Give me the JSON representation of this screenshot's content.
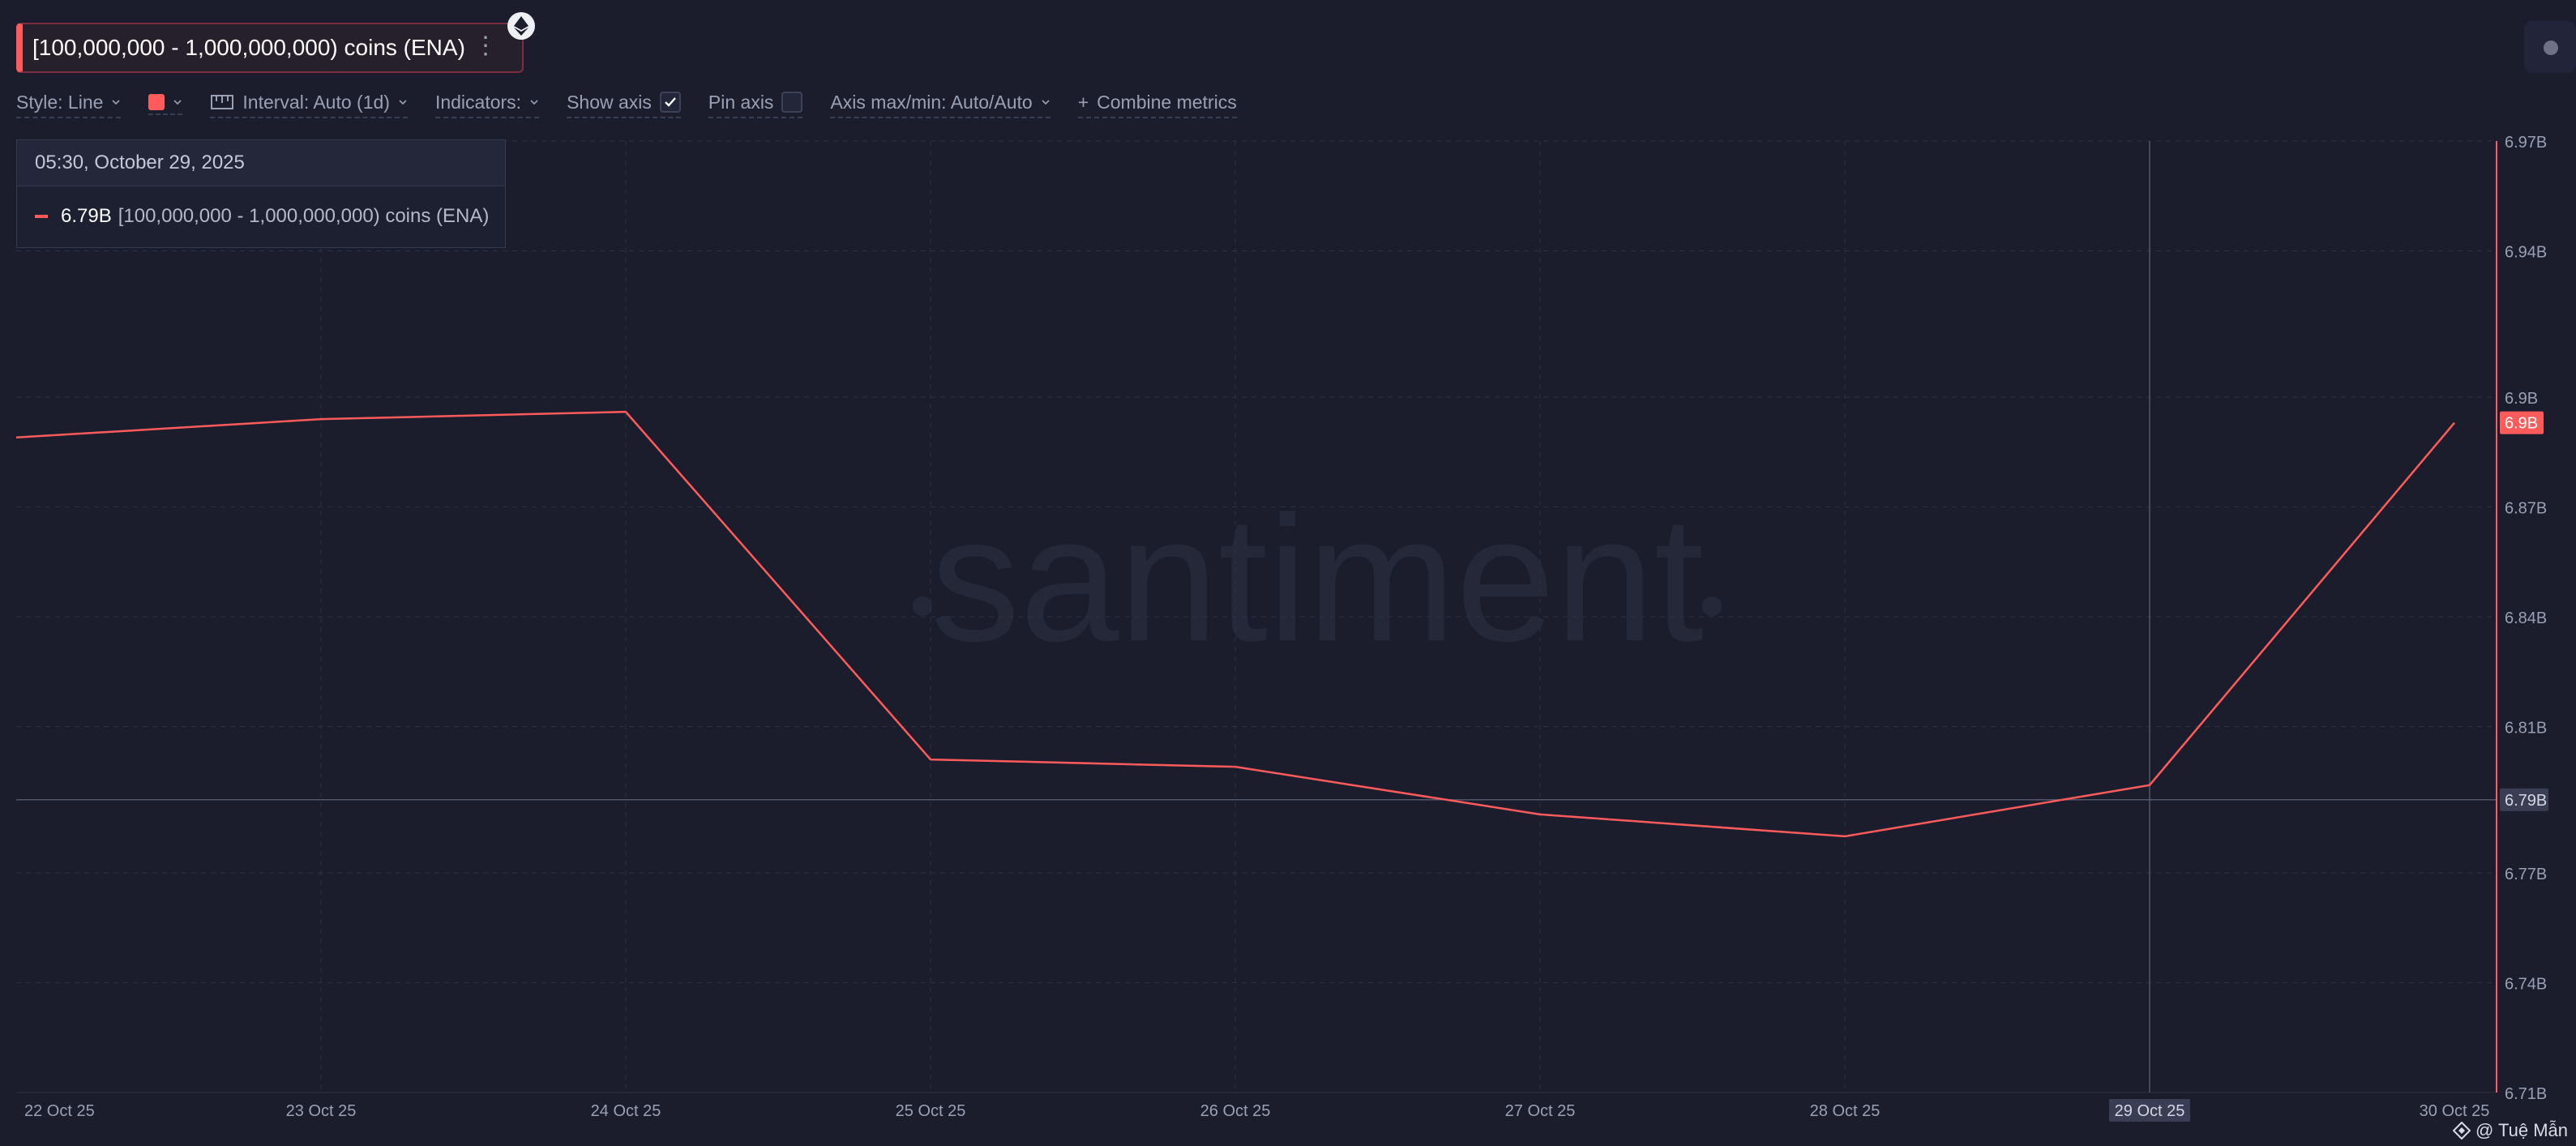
{
  "header": {
    "metric_title": "[100,000,000 - 1,000,000,000) coins (ENA)",
    "menu_glyph": "⋮",
    "asset_icon": "ethereum-icon"
  },
  "toolbar": {
    "style_label": "Style: Line",
    "color_swatch": "#ff5b5b",
    "interval_label": "Interval: Auto (1d)",
    "indicators_label": "Indicators:",
    "show_axis_label": "Show axis",
    "show_axis_checked": true,
    "pin_axis_label": "Pin axis",
    "pin_axis_checked": false,
    "axis_minmax_label": "Axis max/min: Auto/Auto",
    "combine_label": "Combine metrics",
    "combine_glyph": "+"
  },
  "tooltip": {
    "datetime": "05:30, October 29, 2025",
    "value": "6.79B",
    "label": "[100,000,000 - 1,000,000,000) coins (ENA)"
  },
  "watermark": "santiment",
  "credit": "@ Tuệ Mẫn",
  "colors": {
    "line": "#ff5b5b",
    "background": "#1b1d2c",
    "grid": "#2c3043",
    "hover": "#52566a"
  },
  "chart_data": {
    "type": "line",
    "title": "",
    "xlabel": "",
    "ylabel": "",
    "x": [
      "22 Oct 25",
      "23 Oct 25",
      "24 Oct 25",
      "25 Oct 25",
      "26 Oct 25",
      "27 Oct 25",
      "28 Oct 25",
      "29 Oct 25",
      "30 Oct 25"
    ],
    "x_tick_labels": [
      "22 Oct 25",
      "23 Oct 25",
      "24 Oct 25",
      "25 Oct 25",
      "26 Oct 25",
      "27 Oct 25",
      "28 Oct 25",
      "29 Oct 25",
      "30 Oct 25"
    ],
    "series": [
      {
        "values": [
          6.889,
          6.894,
          6.896,
          6.801,
          6.799,
          6.786,
          6.78,
          6.794,
          6.893
        ]
      }
    ],
    "ylim": [
      6.71,
      6.97
    ],
    "y_ticks": [
      6.97,
      6.94,
      6.9,
      6.87,
      6.84,
      6.81,
      6.77,
      6.74,
      6.71
    ],
    "y_tick_labels": [
      "6.97B",
      "6.94B",
      "6.9B",
      "6.87B",
      "6.84B",
      "6.81B",
      "6.77B",
      "6.74B",
      "6.71B"
    ],
    "hover_value": 6.79,
    "hover_value_label": "6.79B",
    "hover_x": "29 Oct 25",
    "last_value_label": "6.9B",
    "grid": true
  }
}
